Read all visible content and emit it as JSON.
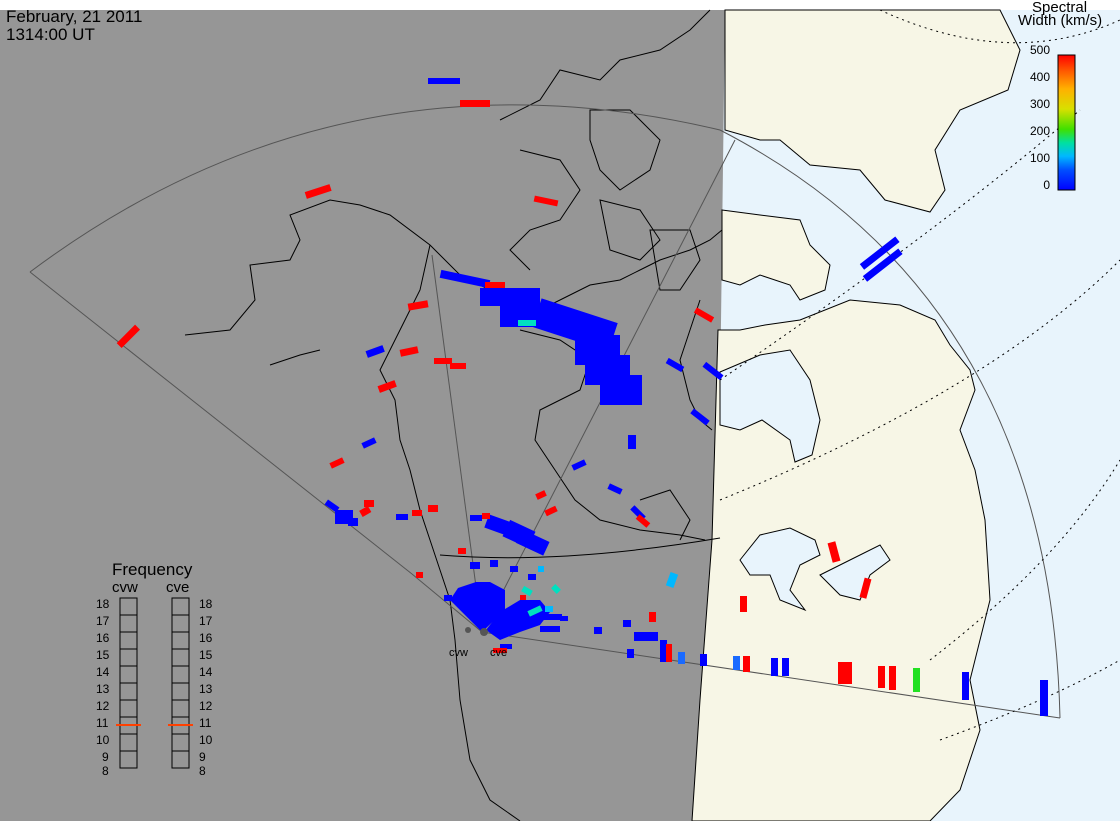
{
  "header": {
    "date": "February, 21 2011",
    "time": "1314:00 UT"
  },
  "colorbar": {
    "title_line1": "Spectral",
    "title_line2": "Width (km/s)",
    "ticks": [
      "500",
      "400",
      "300",
      "200",
      "100",
      "0"
    ],
    "colors": [
      "#ff0000",
      "#ff5a00",
      "#ffb000",
      "#d8e000",
      "#40e000",
      "#00e0a0",
      "#00b8ff",
      "#0050ff",
      "#0000ff"
    ]
  },
  "frequency_panel": {
    "title": "Frequency",
    "radars": [
      "cvw",
      "cve"
    ],
    "scale": [
      "18",
      "17",
      "16",
      "15",
      "14",
      "13",
      "12",
      "11",
      "10",
      "9",
      "8"
    ],
    "cvw_mhz": 10.6,
    "cve_mhz": 10.6,
    "indicator_color": "#ff4000"
  },
  "radar_sites": [
    "cvw",
    "cve"
  ],
  "colors": {
    "night_gray": "#969696",
    "day_land": "#f7f6e6",
    "day_ocean": "#e8f4fc",
    "low_width": "#0000ff",
    "high_width": "#ff0000"
  }
}
